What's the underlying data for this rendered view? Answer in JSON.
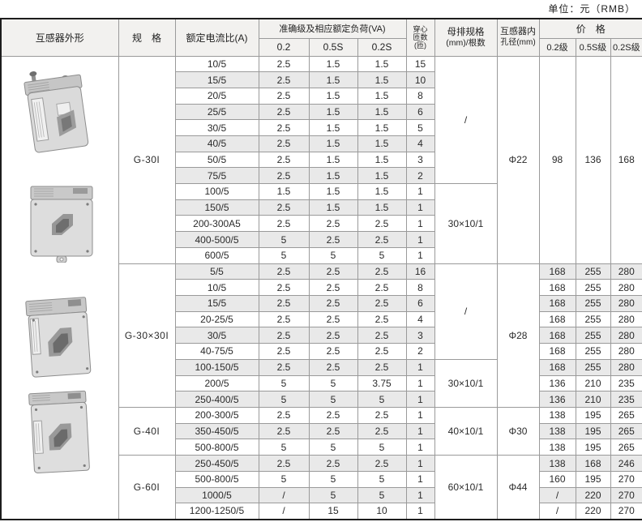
{
  "page": {
    "unit_label": "单位：元（RMB）"
  },
  "colors": {
    "header-bg": "#f2f1ef",
    "zebra-bg": "#e9e9e9",
    "border-inner": "#9a9a9a",
    "border-outer": "#1d1d1d"
  },
  "table": {
    "headers": {
      "appearance": "互感器外形",
      "spec": "规　格",
      "ratio": "额定电流比(A)",
      "accuracy_group": "准确级及相应额定负荷(VA)",
      "accuracy_cols": [
        "0.2",
        "0.5S",
        "0.2S"
      ],
      "turns_lines": [
        "穿心",
        "匝数",
        "(匝)"
      ],
      "busbar_lines": [
        "母排规格",
        "(mm)/根数"
      ],
      "bore_lines": [
        "互感器内",
        "孔径(mm)"
      ],
      "price_group": "价　格",
      "price_cols": [
        "0.2级",
        "0.5S级",
        "0.2S级"
      ]
    },
    "sections": [
      {
        "spec": "G-30I",
        "bore": "Φ22",
        "busbar_groups": [
          {
            "label": "/",
            "span": 8
          },
          {
            "label": "30×10/1",
            "span": 5
          }
        ],
        "price_mode": "merged",
        "merged_prices": [
          "98",
          "136",
          "168"
        ],
        "rows": [
          {
            "ratio": "10/5",
            "va": [
              "2.5",
              "1.5",
              "1.5"
            ],
            "turns": "15"
          },
          {
            "ratio": "15/5",
            "va": [
              "2.5",
              "1.5",
              "1.5"
            ],
            "turns": "10"
          },
          {
            "ratio": "20/5",
            "va": [
              "2.5",
              "1.5",
              "1.5"
            ],
            "turns": "8"
          },
          {
            "ratio": "25/5",
            "va": [
              "2.5",
              "1.5",
              "1.5"
            ],
            "turns": "6"
          },
          {
            "ratio": "30/5",
            "va": [
              "2.5",
              "1.5",
              "1.5"
            ],
            "turns": "5"
          },
          {
            "ratio": "40/5",
            "va": [
              "2.5",
              "1.5",
              "1.5"
            ],
            "turns": "4"
          },
          {
            "ratio": "50/5",
            "va": [
              "2.5",
              "1.5",
              "1.5"
            ],
            "turns": "3"
          },
          {
            "ratio": "75/5",
            "va": [
              "2.5",
              "1.5",
              "1.5"
            ],
            "turns": "2"
          },
          {
            "ratio": "100/5",
            "va": [
              "1.5",
              "1.5",
              "1.5"
            ],
            "turns": "1"
          },
          {
            "ratio": "150/5",
            "va": [
              "2.5",
              "1.5",
              "1.5"
            ],
            "turns": "1"
          },
          {
            "ratio": "200-300A5",
            "va": [
              "2.5",
              "2.5",
              "2.5"
            ],
            "turns": "1"
          },
          {
            "ratio": "400-500/5",
            "va": [
              "5",
              "2.5",
              "2.5"
            ],
            "turns": "1"
          },
          {
            "ratio": "600/5",
            "va": [
              "5",
              "5",
              "5"
            ],
            "turns": "1"
          }
        ]
      },
      {
        "spec": "G-30×30I",
        "bore": "Φ28",
        "busbar_groups": [
          {
            "label": "/",
            "span": 6
          },
          {
            "label": "30×10/1",
            "span": 3
          }
        ],
        "price_mode": "per_row",
        "rows": [
          {
            "ratio": "5/5",
            "va": [
              "2.5",
              "2.5",
              "2.5"
            ],
            "turns": "16",
            "prices": [
              "168",
              "255",
              "280"
            ]
          },
          {
            "ratio": "10/5",
            "va": [
              "2.5",
              "2.5",
              "2.5"
            ],
            "turns": "8",
            "prices": [
              "168",
              "255",
              "280"
            ]
          },
          {
            "ratio": "15/5",
            "va": [
              "2.5",
              "2.5",
              "2.5"
            ],
            "turns": "6",
            "prices": [
              "168",
              "255",
              "280"
            ]
          },
          {
            "ratio": "20-25/5",
            "va": [
              "2.5",
              "2.5",
              "2.5"
            ],
            "turns": "4",
            "prices": [
              "168",
              "255",
              "280"
            ]
          },
          {
            "ratio": "30/5",
            "va": [
              "2.5",
              "2.5",
              "2.5"
            ],
            "turns": "3",
            "prices": [
              "168",
              "255",
              "280"
            ]
          },
          {
            "ratio": "40-75/5",
            "va": [
              "2.5",
              "2.5",
              "2.5"
            ],
            "turns": "2",
            "prices": [
              "168",
              "255",
              "280"
            ]
          },
          {
            "ratio": "100-150/5",
            "va": [
              "2.5",
              "2.5",
              "2.5"
            ],
            "turns": "1",
            "prices": [
              "168",
              "255",
              "280"
            ]
          },
          {
            "ratio": "200/5",
            "va": [
              "5",
              "5",
              "3.75"
            ],
            "turns": "1",
            "prices": [
              "136",
              "210",
              "235"
            ]
          },
          {
            "ratio": "250-400/5",
            "va": [
              "5",
              "5",
              "5"
            ],
            "turns": "1",
            "prices": [
              "136",
              "210",
              "235"
            ]
          }
        ]
      },
      {
        "spec": "G-40I",
        "bore": "Φ30",
        "busbar_groups": [
          {
            "label": "40×10/1",
            "span": 3
          }
        ],
        "price_mode": "per_row",
        "rows": [
          {
            "ratio": "200-300/5",
            "va": [
              "2.5",
              "2.5",
              "2.5"
            ],
            "turns": "1",
            "prices": [
              "138",
              "195",
              "265"
            ]
          },
          {
            "ratio": "350-450/5",
            "va": [
              "2.5",
              "2.5",
              "2.5"
            ],
            "turns": "1",
            "prices": [
              "138",
              "195",
              "265"
            ]
          },
          {
            "ratio": "500-800/5",
            "va": [
              "5",
              "5",
              "5"
            ],
            "turns": "1",
            "prices": [
              "138",
              "195",
              "265"
            ]
          }
        ]
      },
      {
        "spec": "G-60I",
        "bore": "Φ44",
        "busbar_groups": [
          {
            "label": "60×10/1",
            "span": 4
          }
        ],
        "price_mode": "per_row",
        "rows": [
          {
            "ratio": "250-450/5",
            "va": [
              "2.5",
              "2.5",
              "2.5"
            ],
            "turns": "1",
            "prices": [
              "138",
              "168",
              "246"
            ]
          },
          {
            "ratio": "500-800/5",
            "va": [
              "5",
              "5",
              "5"
            ],
            "turns": "1",
            "prices": [
              "160",
              "195",
              "270"
            ]
          },
          {
            "ratio": "1000/5",
            "va": [
              "/",
              "5",
              "5"
            ],
            "turns": "1",
            "prices": [
              "/",
              "220",
              "270"
            ]
          },
          {
            "ratio": "1200-1250/5",
            "va": [
              "/",
              "15",
              "10"
            ],
            "turns": "1",
            "prices": [
              "/",
              "220",
              "270"
            ]
          }
        ]
      }
    ]
  }
}
